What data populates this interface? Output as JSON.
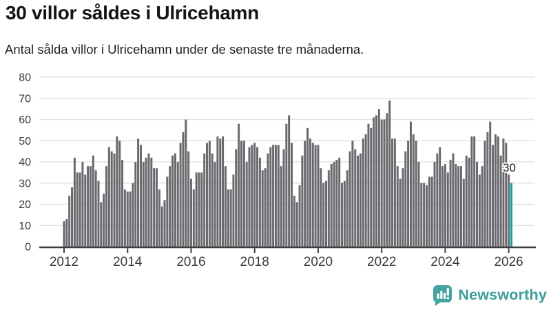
{
  "header": {
    "title": "30 villor såldes i Ulricehamn",
    "subtitle": "Antal sålda villor i Ulricehamn under de senaste tre månaderna."
  },
  "chart_data": {
    "type": "bar",
    "title": "30 villor såldes i Ulricehamn",
    "xlabel": "",
    "ylabel": "",
    "ylim": [
      0,
      80
    ],
    "grid": true,
    "y_tick_labels": [
      "0",
      "10",
      "20",
      "30",
      "40",
      "50",
      "60",
      "70",
      "80"
    ],
    "y_ticks": [
      0,
      10,
      20,
      30,
      40,
      50,
      60,
      70,
      80
    ],
    "x_tick_labels": [
      "2012",
      "2014",
      "2016",
      "2018",
      "2020",
      "2022",
      "2024",
      "2026"
    ],
    "x_tick_years": [
      2012,
      2014,
      2016,
      2018,
      2020,
      2022,
      2024,
      2026
    ],
    "x_start_year": 2012,
    "months_per_bar": 1,
    "values": [
      12,
      13,
      24,
      28,
      42,
      35,
      35,
      40,
      34,
      38,
      38,
      43,
      36,
      31,
      21,
      25,
      38,
      47,
      45,
      44,
      52,
      50,
      41,
      27,
      26,
      26,
      30,
      40,
      51,
      48,
      40,
      42,
      44,
      42,
      37,
      37,
      27,
      19,
      22,
      33,
      38,
      43,
      44,
      40,
      49,
      54,
      60,
      45,
      32,
      27,
      35,
      35,
      35,
      44,
      49,
      50,
      44,
      40,
      52,
      51,
      52,
      38,
      27,
      27,
      34,
      46,
      58,
      50,
      50,
      40,
      47,
      48,
      49,
      47,
      42,
      36,
      37,
      44,
      47,
      48,
      48,
      48,
      38,
      46,
      58,
      62,
      49,
      24,
      21,
      29,
      43,
      50,
      56,
      51,
      49,
      48,
      48,
      37,
      30,
      31,
      36,
      39,
      40,
      41,
      42,
      30,
      31,
      36,
      45,
      50,
      46,
      43,
      44,
      51,
      53,
      58,
      56,
      61,
      62,
      65,
      60,
      60,
      63,
      69,
      51,
      51,
      38,
      32,
      37,
      45,
      50,
      59,
      53,
      50,
      40,
      30,
      30,
      29,
      33,
      33,
      40,
      44,
      47,
      38,
      39,
      35,
      41,
      44,
      39,
      38,
      38,
      32,
      43,
      42,
      52,
      52,
      40,
      34,
      38,
      50,
      54,
      59,
      48,
      53,
      52,
      43,
      51,
      49,
      34,
      30
    ],
    "highlight_last": true,
    "highlight_label": "30",
    "bar_color": "#69696e",
    "highlight_color": "#199e9e",
    "legend": "none"
  },
  "footer": {
    "brand": "Newsworthy",
    "brand_color": "#3b9e99"
  },
  "icons": {
    "logo": "newsworthy-speech-bubble-chart-icon"
  }
}
